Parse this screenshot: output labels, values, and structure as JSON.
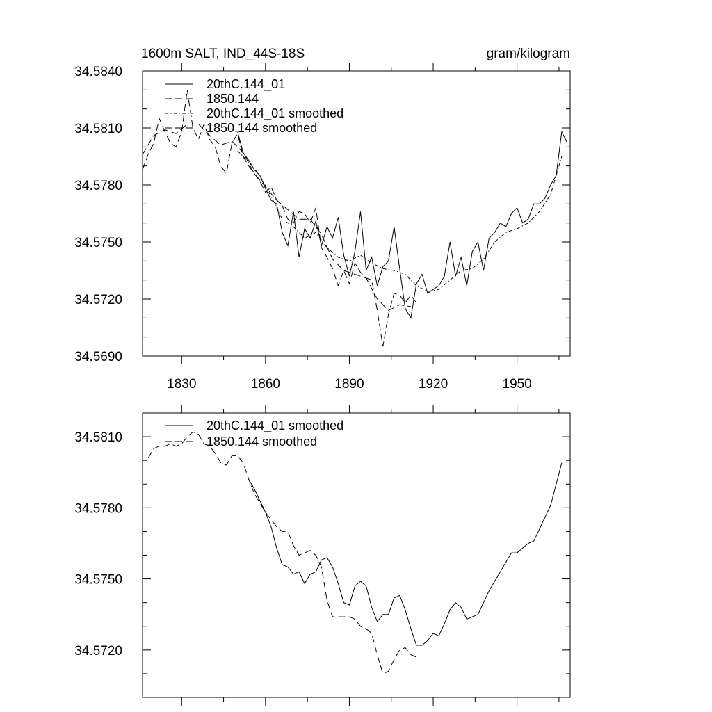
{
  "chart_data": [
    {
      "type": "line",
      "title": "1600m SALT, IND_44S-18S",
      "units": "gram/kilogram",
      "xlabel": "",
      "ylabel": "",
      "xlim": [
        1816,
        1969
      ],
      "ylim": [
        34.569,
        34.584
      ],
      "xticks": [
        1830,
        1860,
        1890,
        1920,
        1950
      ],
      "xtick_labels": [
        "1830",
        "1860",
        "1890",
        "1920",
        "1950"
      ],
      "yticks": [
        34.569,
        34.572,
        34.575,
        34.578,
        34.581,
        34.584
      ],
      "ytick_labels": [
        "34.5690",
        "34.5720",
        "34.5750",
        "34.5780",
        "34.5810",
        "34.5840"
      ],
      "legend_position": "top-left",
      "grid": false,
      "series": [
        {
          "name": "20thC.144_01",
          "style": "solid",
          "x": [
            1850,
            1852,
            1854,
            1856,
            1858,
            1860,
            1862,
            1864,
            1866,
            1868,
            1870,
            1872,
            1874,
            1876,
            1878,
            1880,
            1882,
            1884,
            1886,
            1888,
            1890,
            1892,
            1894,
            1896,
            1898,
            1900,
            1902,
            1904,
            1906,
            1908,
            1910,
            1912,
            1914,
            1916,
            1918,
            1920,
            1922,
            1924,
            1926,
            1928,
            1930,
            1932,
            1934,
            1936,
            1938,
            1940,
            1942,
            1944,
            1946,
            1948,
            1950,
            1952,
            1954,
            1956,
            1958,
            1960,
            1962,
            1964,
            1966,
            1968
          ],
          "values": [
            34.5808,
            34.5797,
            34.5793,
            34.5788,
            34.5785,
            34.5778,
            34.5772,
            34.577,
            34.5755,
            34.5748,
            34.5766,
            34.5742,
            34.5757,
            34.5752,
            34.5761,
            34.5748,
            34.5758,
            34.5752,
            34.5763,
            34.5743,
            34.5732,
            34.5745,
            34.5766,
            34.5735,
            34.5742,
            34.5727,
            34.5737,
            34.574,
            34.5758,
            34.5736,
            34.5715,
            34.571,
            34.5728,
            34.5733,
            34.5723,
            34.5725,
            34.5727,
            34.5732,
            34.575,
            34.5732,
            34.5742,
            34.5727,
            34.5745,
            34.575,
            34.5735,
            34.5752,
            34.5755,
            34.576,
            34.5758,
            34.5765,
            34.5768,
            34.576,
            34.5762,
            34.577,
            34.577,
            34.5773,
            34.578,
            34.5785,
            34.5808,
            34.5802
          ]
        },
        {
          "name": "1850.144",
          "style": "dashed",
          "x": [
            1816,
            1818,
            1820,
            1822,
            1824,
            1826,
            1828,
            1830,
            1832,
            1834,
            1836,
            1838,
            1840,
            1842,
            1844,
            1846,
            1848,
            1850,
            1852,
            1854,
            1856,
            1858,
            1860,
            1862,
            1864,
            1866,
            1868,
            1870,
            1872,
            1874,
            1876,
            1878,
            1880,
            1882,
            1884,
            1886,
            1888,
            1890,
            1892,
            1894,
            1896,
            1898,
            1900,
            1902,
            1904,
            1906,
            1908,
            1910,
            1912,
            1914
          ],
          "values": [
            34.5788,
            34.5796,
            34.5802,
            34.5815,
            34.5808,
            34.5802,
            34.58,
            34.5808,
            34.583,
            34.581,
            34.5804,
            34.5812,
            34.5804,
            34.58,
            34.579,
            34.5786,
            34.5802,
            34.5807,
            34.5795,
            34.579,
            34.5786,
            34.5782,
            34.5776,
            34.5779,
            34.5772,
            34.5769,
            34.5762,
            34.576,
            34.5766,
            34.5765,
            34.576,
            34.5768,
            34.5747,
            34.5742,
            34.5736,
            34.5727,
            34.5735,
            34.5728,
            34.5739,
            34.5734,
            34.5731,
            34.573,
            34.5714,
            34.5695,
            34.5712,
            34.5723,
            34.5722,
            34.5718,
            34.5722,
            34.5718
          ]
        },
        {
          "name": "20thC.144_01 smoothed",
          "style": "dash-dot",
          "x": [
            1850,
            1854,
            1858,
            1862,
            1866,
            1870,
            1874,
            1878,
            1882,
            1886,
            1890,
            1894,
            1898,
            1902,
            1906,
            1910,
            1914,
            1918,
            1922,
            1926,
            1930,
            1934,
            1938,
            1942,
            1946,
            1950,
            1954,
            1958,
            1962,
            1966
          ],
          "values": [
            34.5798,
            34.5792,
            34.5785,
            34.5774,
            34.5762,
            34.5758,
            34.5752,
            34.5755,
            34.5747,
            34.5742,
            34.574,
            34.5743,
            34.5739,
            34.5736,
            34.5735,
            34.5733,
            34.5727,
            34.5724,
            34.5725,
            34.573,
            34.5735,
            34.5736,
            34.5741,
            34.575,
            34.5755,
            34.5757,
            34.576,
            34.5766,
            34.5775,
            34.5795
          ]
        },
        {
          "name": "1850.144 smoothed",
          "style": "dashed",
          "x": [
            1816,
            1820,
            1824,
            1828,
            1832,
            1836,
            1840,
            1844,
            1848,
            1852,
            1856,
            1860,
            1864,
            1868,
            1872,
            1876,
            1880,
            1884,
            1888,
            1892,
            1896,
            1900,
            1904,
            1908,
            1912
          ],
          "values": [
            34.5796,
            34.5806,
            34.5809,
            34.5807,
            34.5812,
            34.5812,
            34.5806,
            34.5801,
            34.5803,
            34.5797,
            34.5786,
            34.5779,
            34.5772,
            34.5767,
            34.5762,
            34.5762,
            34.5754,
            34.5741,
            34.5735,
            34.5733,
            34.5731,
            34.572,
            34.5714,
            34.5717,
            34.5716
          ]
        }
      ]
    },
    {
      "type": "line",
      "title": "",
      "xlabel": "",
      "ylabel": "",
      "xlim": [
        1816,
        1969
      ],
      "ylim": [
        34.57,
        34.582
      ],
      "xticks": [
        1830,
        1860,
        1890,
        1920,
        1950
      ],
      "yticks": [
        34.572,
        34.575,
        34.578,
        34.581
      ],
      "ytick_labels": [
        "34.5720",
        "34.5750",
        "34.5780",
        "34.5810"
      ],
      "legend_position": "top-left",
      "grid": false,
      "series": [
        {
          "name": "20thC.144_01 smoothed",
          "style": "solid",
          "x": [
            1854,
            1856,
            1858,
            1860,
            1862,
            1864,
            1866,
            1868,
            1870,
            1872,
            1874,
            1876,
            1878,
            1880,
            1882,
            1884,
            1886,
            1888,
            1890,
            1892,
            1894,
            1896,
            1898,
            1900,
            1902,
            1904,
            1906,
            1908,
            1910,
            1912,
            1914,
            1916,
            1918,
            1920,
            1922,
            1924,
            1926,
            1928,
            1930,
            1932,
            1934,
            1936,
            1938,
            1940,
            1942,
            1944,
            1946,
            1948,
            1950,
            1952,
            1954,
            1956,
            1958,
            1960,
            1962,
            1964,
            1966
          ],
          "values": [
            34.5792,
            34.5788,
            34.5783,
            34.5778,
            34.5772,
            34.5763,
            34.5756,
            34.5755,
            34.5752,
            34.5753,
            34.5748,
            34.5752,
            34.5753,
            34.5758,
            34.5759,
            34.5755,
            34.5748,
            34.574,
            34.5739,
            34.5747,
            34.5749,
            34.5747,
            34.5738,
            34.5732,
            34.5735,
            34.5735,
            34.5742,
            34.5743,
            34.5737,
            34.5729,
            34.5722,
            34.5722,
            34.5724,
            34.5727,
            34.5726,
            34.5731,
            34.5737,
            34.574,
            34.5738,
            34.5733,
            34.5734,
            34.5735,
            34.574,
            34.5745,
            34.5749,
            34.5753,
            34.5757,
            34.5761,
            34.5761,
            34.5763,
            34.5765,
            34.5766,
            34.5771,
            34.5776,
            34.5781,
            34.579,
            34.5799
          ]
        },
        {
          "name": "1850.144 smoothed",
          "style": "dashed",
          "x": [
            1818,
            1820,
            1822,
            1824,
            1826,
            1828,
            1830,
            1832,
            1834,
            1836,
            1838,
            1840,
            1842,
            1844,
            1846,
            1848,
            1850,
            1852,
            1854,
            1856,
            1858,
            1860,
            1862,
            1864,
            1866,
            1868,
            1870,
            1872,
            1874,
            1876,
            1878,
            1880,
            1882,
            1884,
            1886,
            1888,
            1890,
            1892,
            1894,
            1896,
            1898,
            1900,
            1902,
            1904,
            1906,
            1908,
            1910,
            1912,
            1914
          ],
          "values": [
            34.5801,
            34.5805,
            34.5806,
            34.5806,
            34.5807,
            34.5806,
            34.5807,
            34.581,
            34.5812,
            34.5811,
            34.5807,
            34.5806,
            34.5803,
            34.5799,
            34.5798,
            34.5802,
            34.5802,
            34.5799,
            34.5792,
            34.5786,
            34.5782,
            34.5778,
            34.5775,
            34.5772,
            34.577,
            34.577,
            34.5764,
            34.576,
            34.5761,
            34.5762,
            34.576,
            34.5755,
            34.5741,
            34.5734,
            34.5734,
            34.5734,
            34.5734,
            34.5733,
            34.573,
            34.5729,
            34.5727,
            34.5718,
            34.571,
            34.5711,
            34.5716,
            34.572,
            34.5721,
            34.5718,
            34.5717
          ]
        }
      ]
    }
  ]
}
